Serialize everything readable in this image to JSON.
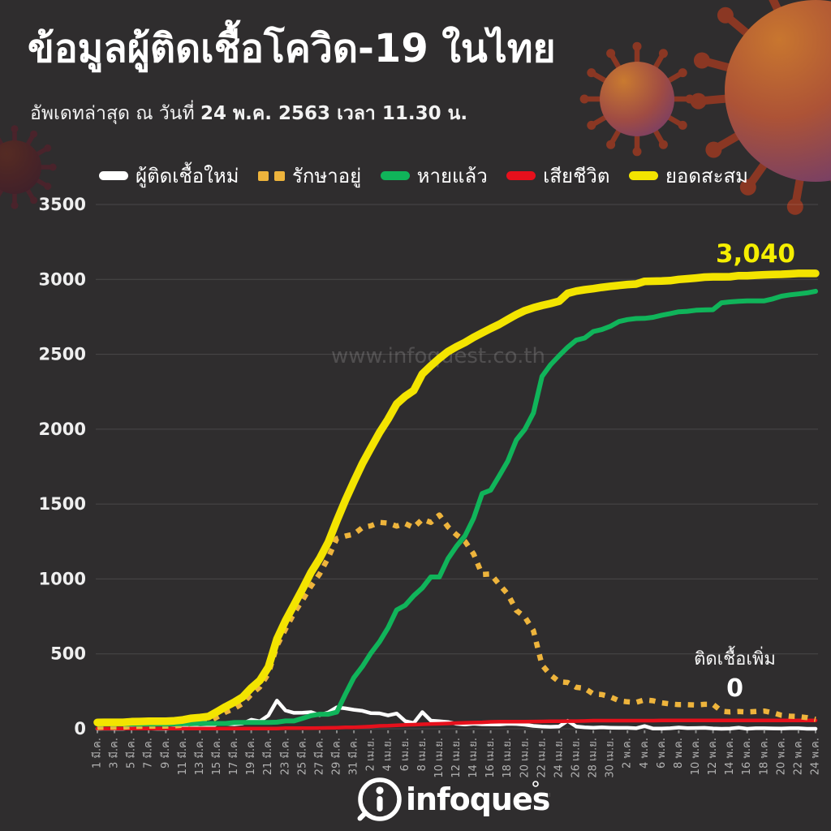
{
  "header": {
    "title": "ข้อมูลผู้ติดเชื้อโควิด-19 ในไทย",
    "subtitle_prefix": "อัพเดทล่าสุด ณ วันที่ ",
    "subtitle_date": "24 พ.ค. 2563 เวลา 11.30 น."
  },
  "annotations": {
    "total_value": "3,040",
    "new_cases_label": "ติดเชื้อเพิ่ม",
    "new_cases_value": "0"
  },
  "watermark": "www.infoquest.co.th",
  "footer": {
    "logo_text": "infoquest"
  },
  "chart_data": {
    "type": "line",
    "title": "ข้อมูลผู้ติดเชื้อโควิด-19 ในไทย",
    "xlabel": "",
    "ylabel": "",
    "ylim": [
      0,
      3500
    ],
    "y_ticks": [
      0,
      500,
      1000,
      1500,
      2000,
      2500,
      3000,
      3500
    ],
    "grid": true,
    "legend_position": "top",
    "x_days": 85,
    "x_range": "1 มี.ค. 2563 – 24 พ.ค. 2563",
    "x_tick_labels": [
      "1 มี.ค.",
      "3 มี.ค.",
      "5 มี.ค.",
      "7 มี.ค.",
      "9 มี.ค.",
      "11 มี.ค.",
      "13 มี.ค.",
      "15 มี.ค.",
      "17 มี.ค.",
      "19 มี.ค.",
      "21 มี.ค.",
      "23 มี.ค.",
      "25 มี.ค.",
      "27 มี.ค.",
      "29 มี.ค.",
      "31 มี.ค.",
      "2 เม.ย.",
      "4 เม.ย.",
      "6 เม.ย.",
      "8 เม.ย.",
      "10 เม.ย.",
      "12 เม.ย.",
      "14 เม.ย.",
      "16 เม.ย.",
      "18 เม.ย.",
      "20 เม.ย.",
      "22 เม.ย.",
      "24 เม.ย.",
      "26 เม.ย.",
      "28 เม.ย.",
      "30 เม.ย.",
      "2 พ.ค.",
      "4 พ.ค.",
      "6 พ.ค.",
      "8 พ.ค.",
      "10 พ.ค.",
      "12 พ.ค.",
      "14 พ.ค.",
      "16 พ.ค.",
      "18 พ.ค.",
      "20 พ.ค.",
      "22 พ.ค.",
      "24 พ.ค."
    ],
    "draw_order": [
      "new",
      "deaths",
      "active",
      "recovered",
      "cumulative"
    ],
    "series": [
      {
        "key": "new",
        "name": "ผู้ติดเชื้อใหม่",
        "color": "#ffffff",
        "style": "solid",
        "values": [
          0,
          1,
          0,
          0,
          4,
          1,
          2,
          0,
          0,
          3,
          6,
          11,
          5,
          7,
          32,
          33,
          30,
          35,
          60,
          50,
          89,
          188,
          122,
          106,
          107,
          111,
          91,
          109,
          143,
          136,
          127,
          120,
          104,
          103,
          89,
          102,
          51,
          38,
          111,
          54,
          50,
          45,
          33,
          28,
          34,
          30,
          29,
          28,
          33,
          32,
          27,
          19,
          15,
          13,
          15,
          53,
          15,
          9,
          7,
          9,
          7,
          6,
          6,
          3,
          18,
          1,
          1,
          3,
          8,
          4,
          5,
          6,
          2,
          0,
          1,
          7,
          0,
          3,
          3,
          2,
          1,
          3,
          3,
          0,
          0
        ]
      },
      {
        "key": "active",
        "name": "รักษาอยู่",
        "color": "#eeb43c",
        "style": "dotted",
        "values": [
          10,
          11,
          11,
          11,
          15,
          16,
          18,
          18,
          18,
          19,
          24,
          35,
          39,
          46,
          78,
          111,
          135,
          169,
          229,
          279,
          368,
          554,
          665,
          771,
          860,
          953,
          1034,
          1142,
          1270,
          1286,
          1299,
          1343,
          1355,
          1378,
          1373,
          1353,
          1370,
          1343,
          1399,
          1378,
          1427,
          1348,
          1295,
          1251,
          1167,
          1030,
          1033,
          964,
          899,
          790,
          746,
          655,
          425,
          359,
          314,
          309,
          277,
          270,
          232,
          228,
          213,
          187,
          180,
          176,
          193,
          187,
          173,
          165,
          161,
          161,
          159,
          163,
          163,
          117,
          112,
          115,
          112,
          115,
          118,
          107,
          90,
          84,
          81,
          74,
          63
        ]
      },
      {
        "key": "recovered",
        "name": "หายแล้ว",
        "color": "#10b45a",
        "style": "solid",
        "values": [
          31,
          31,
          31,
          31,
          31,
          31,
          31,
          31,
          31,
          33,
          34,
          34,
          35,
          35,
          35,
          35,
          41,
          42,
          42,
          42,
          42,
          44,
          52,
          52,
          70,
          88,
          97,
          97,
          111,
          229,
          342,
          416,
          505,
          581,
          674,
          793,
          824,
          888,
          940,
          1013,
          1013,
          1135,
          1218,
          1288,
          1405,
          1570,
          1593,
          1689,
          1787,
          1928,
          1999,
          2108,
          2352,
          2430,
          2490,
          2547,
          2594,
          2609,
          2652,
          2665,
          2687,
          2719,
          2732,
          2739,
          2740,
          2747,
          2761,
          2772,
          2784,
          2787,
          2794,
          2796,
          2798,
          2844,
          2850,
          2854,
          2857,
          2857,
          2857,
          2870,
          2888,
          2897,
          2903,
          2910,
          2921
        ]
      },
      {
        "key": "deaths",
        "name": "เสียชีวิต",
        "color": "#e6101c",
        "style": "solid",
        "values": [
          1,
          1,
          1,
          1,
          1,
          1,
          1,
          1,
          1,
          1,
          1,
          1,
          1,
          1,
          1,
          1,
          1,
          1,
          1,
          1,
          1,
          1,
          4,
          4,
          4,
          4,
          5,
          6,
          7,
          9,
          10,
          12,
          15,
          19,
          20,
          23,
          26,
          27,
          30,
          32,
          33,
          35,
          38,
          40,
          41,
          43,
          46,
          47,
          47,
          47,
          47,
          48,
          49,
          50,
          50,
          51,
          51,
          52,
          54,
          54,
          54,
          54,
          54,
          54,
          54,
          54,
          55,
          55,
          55,
          56,
          56,
          56,
          56,
          56,
          56,
          56,
          56,
          56,
          56,
          56,
          56,
          56,
          56,
          56,
          56
        ]
      },
      {
        "key": "cumulative",
        "name": "ยอดสะสม",
        "color": "#f3e400",
        "style": "solid",
        "values": [
          42,
          43,
          43,
          43,
          47,
          48,
          50,
          50,
          50,
          53,
          59,
          70,
          75,
          82,
          114,
          147,
          177,
          212,
          272,
          322,
          411,
          599,
          721,
          827,
          934,
          1045,
          1136,
          1245,
          1388,
          1524,
          1651,
          1771,
          1875,
          1978,
          2067,
          2169,
          2220,
          2258,
          2369,
          2423,
          2473,
          2518,
          2551,
          2579,
          2613,
          2643,
          2672,
          2700,
          2733,
          2765,
          2792,
          2811,
          2826,
          2839,
          2854,
          2907,
          2922,
          2931,
          2938,
          2947,
          2954,
          2960,
          2966,
          2969,
          2987,
          2988,
          2989,
          2992,
          3000,
          3004,
          3009,
          3015,
          3017,
          3017,
          3018,
          3025,
          3025,
          3028,
          3031,
          3033,
          3034,
          3037,
          3040,
          3040,
          3040
        ]
      }
    ]
  }
}
